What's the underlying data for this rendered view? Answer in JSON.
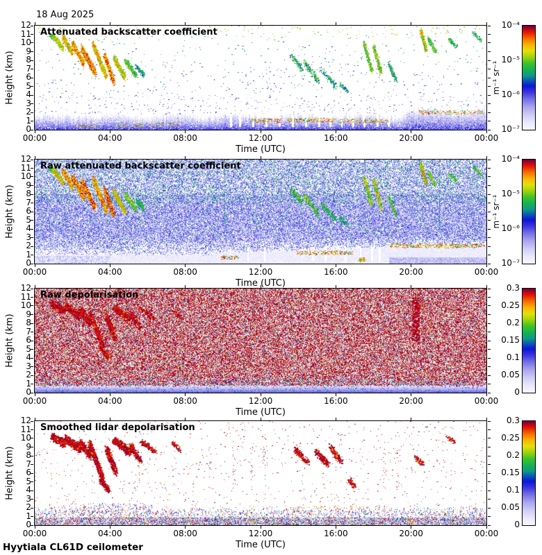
{
  "page": {
    "date_label": "18 Aug 2025",
    "footer_label": "Hyytiala CL61D ceilometer",
    "background": "#ffffff"
  },
  "chart_data": {
    "type": "heatmap",
    "title_date": "18 Aug 2025",
    "instrument": "Hyytiala CL61D ceilometer",
    "x_axis": {
      "label": "Time (UTC)",
      "tick_labels": [
        "00:00",
        "04:00",
        "08:00",
        "12:00",
        "16:00",
        "20:00",
        "00:00"
      ],
      "tick_hours": [
        0,
        4,
        8,
        12,
        16,
        20,
        24
      ],
      "range_hours": [
        0,
        24
      ]
    },
    "y_axis": {
      "label": "Height (km)",
      "tick_labels": [
        "0",
        "1",
        "2",
        "3",
        "4",
        "5",
        "6",
        "7",
        "8",
        "9",
        "10",
        "11",
        "12"
      ],
      "range_km": [
        0,
        12
      ]
    },
    "colormap": [
      [
        0.0,
        "#f8f6ff"
      ],
      [
        0.06,
        "#ecebfc"
      ],
      [
        0.14,
        "#cfcdf6"
      ],
      [
        0.22,
        "#a8a4ee"
      ],
      [
        0.3,
        "#6f6ae6"
      ],
      [
        0.36,
        "#3a35e0"
      ],
      [
        0.42,
        "#0b16d8"
      ],
      [
        0.47,
        "#0b56b8"
      ],
      [
        0.52,
        "#0e9a8a"
      ],
      [
        0.58,
        "#16b350"
      ],
      [
        0.64,
        "#3ec428"
      ],
      [
        0.7,
        "#9ed40e"
      ],
      [
        0.76,
        "#e6e00a"
      ],
      [
        0.82,
        "#f8b400"
      ],
      [
        0.88,
        "#f86c00"
      ],
      [
        0.94,
        "#e41800"
      ],
      [
        0.98,
        "#a80028"
      ],
      [
        1.0,
        "#70003c"
      ]
    ],
    "colorbars": {
      "backscatter": {
        "tick_labels": [
          "10⁻⁴",
          "10⁻⁵",
          "10⁻⁶",
          "10⁻⁷"
        ],
        "unit": "m⁻¹ sr⁻¹",
        "scale": "log",
        "range": [
          "1e-7",
          "1e-4"
        ]
      },
      "depol": {
        "tick_labels": [
          "0.3",
          "0.25",
          "0.2",
          "0.15",
          "0.1",
          "0.05",
          "0"
        ],
        "unit": "",
        "scale": "linear",
        "range": [
          0,
          0.3
        ]
      }
    },
    "panels": [
      {
        "title": "Attenuated backscatter coefficient",
        "style": "backscatter",
        "colorbar": "backscatter",
        "seed": 11,
        "layer_top_km": 1.45,
        "gap_columns": [
          10.4,
          10.9,
          11.6,
          12.3,
          13.0,
          13.7,
          14.4,
          15.1,
          15.7,
          16.3,
          16.9,
          17.5,
          18.2,
          18.8
        ],
        "ground_clusters": [
          [
            4.3,
            7.6,
            0.55,
            90
          ],
          [
            2.2,
            3.4,
            0.4,
            40
          ],
          [
            11.4,
            13.1,
            1.05,
            110
          ],
          [
            13.4,
            16.0,
            1.1,
            150
          ],
          [
            16.1,
            18.8,
            1.0,
            130
          ],
          [
            20.4,
            23.9,
            2.0,
            160
          ]
        ]
      },
      {
        "title": "Raw attenuated backscatter coefficient",
        "style": "raw_backscatter",
        "colorbar": "backscatter",
        "seed": 22,
        "gap_columns": [
          10.4,
          11.3,
          12.2,
          14.2,
          14.8,
          15.4,
          15.9,
          16.5,
          17.3,
          17.9,
          18.3
        ],
        "ground_clusters": [
          [
            9.9,
            10.8,
            0.7,
            60
          ],
          [
            13.9,
            16.9,
            1.25,
            200
          ],
          [
            17.2,
            17.6,
            0.45,
            50
          ],
          [
            18.9,
            23.9,
            2.05,
            380
          ]
        ],
        "green_columns": [
          10.1,
          21.5
        ]
      },
      {
        "title": "Raw depolarisation",
        "style": "raw_depol",
        "colorbar": "depol",
        "seed": 33,
        "column_clusters": [
          [
            20.25,
            6.0,
            11.0,
            170
          ]
        ]
      },
      {
        "title": "Smoothed lidar depolarisation",
        "style": "smooth_depol",
        "colorbar": "depol",
        "seed": 44,
        "dot_columns": [
          5.5,
          9.3,
          10.6,
          11.5,
          12.2,
          18.6,
          19.3
        ],
        "red_row": [
          13.5,
          19.0,
          2.05,
          70
        ]
      }
    ],
    "cloud_segments": [
      [
        0.8,
        11.0,
        1.2,
        10.2,
        0.3,
        0.5,
        0.72,
        160
      ],
      [
        1.0,
        10.8,
        1.5,
        9.3,
        0.35,
        0.6,
        0.85,
        350
      ],
      [
        1.5,
        10.7,
        2.0,
        8.8,
        0.35,
        0.65,
        0.92,
        420
      ],
      [
        2.0,
        10.0,
        2.6,
        7.6,
        0.4,
        0.68,
        0.95,
        520
      ],
      [
        2.5,
        9.4,
        3.2,
        6.5,
        0.5,
        0.7,
        0.98,
        750
      ],
      [
        3.1,
        9.8,
        3.8,
        6.1,
        0.45,
        0.65,
        0.92,
        650
      ],
      [
        3.7,
        8.6,
        4.2,
        5.5,
        0.4,
        0.72,
        0.98,
        550
      ],
      [
        4.2,
        8.3,
        4.8,
        6.0,
        0.45,
        0.6,
        0.88,
        450
      ],
      [
        4.8,
        8.0,
        5.4,
        6.2,
        0.4,
        0.5,
        0.75,
        280
      ],
      [
        5.4,
        7.3,
        5.8,
        6.3,
        0.3,
        0.45,
        0.62,
        140
      ],
      [
        13.6,
        8.6,
        14.2,
        7.0,
        0.45,
        0.45,
        0.7,
        130
      ],
      [
        14.3,
        7.8,
        15.1,
        5.6,
        0.5,
        0.45,
        0.72,
        150
      ],
      [
        15.2,
        6.9,
        16.0,
        5.0,
        0.45,
        0.45,
        0.65,
        110
      ],
      [
        16.2,
        5.3,
        16.6,
        4.5,
        0.3,
        0.45,
        0.6,
        60
      ],
      [
        17.5,
        9.9,
        17.9,
        6.8,
        0.35,
        0.5,
        0.82,
        300
      ],
      [
        18.0,
        9.7,
        18.4,
        6.5,
        0.35,
        0.5,
        0.85,
        300
      ],
      [
        18.8,
        7.7,
        19.2,
        5.6,
        0.3,
        0.45,
        0.7,
        130
      ],
      [
        20.5,
        11.5,
        20.8,
        9.2,
        0.35,
        0.55,
        0.9,
        320
      ],
      [
        20.9,
        10.6,
        21.3,
        9.0,
        0.3,
        0.5,
        0.75,
        160
      ],
      [
        22.0,
        10.4,
        22.4,
        9.6,
        0.25,
        0.5,
        0.7,
        80
      ],
      [
        23.3,
        11.2,
        23.7,
        10.3,
        0.25,
        0.48,
        0.68,
        70
      ]
    ],
    "depol_clusters": [
      [
        0.9,
        10.2,
        1.6,
        9.4,
        0.5,
        480
      ],
      [
        1.6,
        10.0,
        2.4,
        8.8,
        0.55,
        600
      ],
      [
        2.4,
        9.6,
        2.9,
        8.0,
        0.5,
        420
      ],
      [
        2.9,
        9.4,
        3.6,
        5.4,
        0.45,
        780
      ],
      [
        3.5,
        5.2,
        3.9,
        4.1,
        0.35,
        240
      ],
      [
        3.8,
        8.8,
        4.3,
        6.2,
        0.5,
        520
      ],
      [
        4.2,
        9.8,
        5.1,
        8.4,
        0.55,
        520
      ],
      [
        5.1,
        9.2,
        5.6,
        7.4,
        0.4,
        240
      ],
      [
        5.6,
        9.7,
        6.4,
        8.5,
        0.35,
        150
      ],
      [
        7.3,
        9.6,
        7.7,
        8.6,
        0.3,
        70
      ],
      [
        13.8,
        8.8,
        14.5,
        7.2,
        0.45,
        170
      ],
      [
        14.9,
        8.6,
        15.6,
        6.9,
        0.45,
        180
      ],
      [
        15.7,
        9.0,
        16.3,
        7.2,
        0.4,
        150
      ],
      [
        16.7,
        5.3,
        17.0,
        4.4,
        0.3,
        70
      ],
      [
        20.2,
        8.0,
        20.6,
        7.0,
        0.3,
        60
      ],
      [
        21.9,
        10.2,
        22.3,
        9.6,
        0.25,
        45
      ]
    ]
  }
}
